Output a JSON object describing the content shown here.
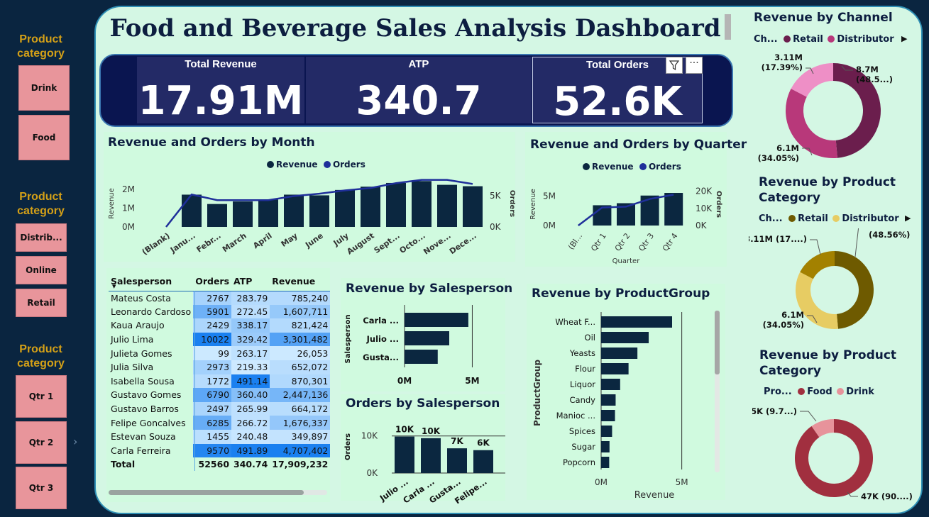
{
  "slicers": [
    {
      "title": "Product category",
      "items": [
        "Drink",
        "Food"
      ]
    },
    {
      "title": "Product category",
      "items": [
        "Distrib...",
        "Online",
        "Retail"
      ]
    },
    {
      "title": "Product category",
      "items": [
        "Qtr 1",
        "Qtr 2",
        "Qtr 3"
      ]
    }
  ],
  "title": "Food and Beverage Sales Analysis Dashboard",
  "kpis": [
    {
      "label": "Total Revenue",
      "value": "17.91M"
    },
    {
      "label": "ATP",
      "value": "340.7"
    },
    {
      "label": "Total Orders",
      "value": "52.6K"
    }
  ],
  "colors": {
    "dark": "#0b2740",
    "orders": "#1f2f9a",
    "retail": "#6b1e4d",
    "distributor": "#b8387a",
    "online": "#ee8fc6",
    "cat_dark": "#6e5a00",
    "cat_gold": "#a38100",
    "cat_light": "#e7cc63",
    "food": "#a12f3f",
    "drink": "#e7939b"
  },
  "month_chart": {
    "title": "Revenue and Orders by Month",
    "legend": [
      "Revenue",
      "Orders"
    ],
    "ylabel_left": "Revenue",
    "ylabel_right": "Orders",
    "left_ticks": [
      "2M",
      "1M",
      "0M"
    ],
    "right_ticks": [
      "5K",
      "0K"
    ]
  },
  "quarter_chart": {
    "title": "Revenue and Orders by Quarter",
    "legend": [
      "Revenue",
      "Orders"
    ],
    "ylabel_left": "Revenue",
    "ylabel_right": "Orders",
    "xlabel": "Quarter",
    "left_ticks": [
      "5M",
      "0M"
    ],
    "right_ticks": [
      "20K",
      "10K",
      "0K"
    ]
  },
  "table": {
    "headers": [
      "Salesperson",
      "Orders",
      "ATP",
      "Revenue"
    ],
    "rows": [
      [
        "Mateus Costa",
        "2767",
        "283.79",
        "785,240"
      ],
      [
        "Leonardo Cardoso",
        "5901",
        "272.45",
        "1,607,711"
      ],
      [
        "Kaua Araujo",
        "2429",
        "338.17",
        "821,424"
      ],
      [
        "Julio Lima",
        "10022",
        "329.42",
        "3,301,482"
      ],
      [
        "Julieta Gomes",
        "99",
        "263.17",
        "26,053"
      ],
      [
        "Julia Silva",
        "2973",
        "219.33",
        "652,072"
      ],
      [
        "Isabella Sousa",
        "1772",
        "491.14",
        "870,301"
      ],
      [
        "Gustavo Gomes",
        "6790",
        "360.40",
        "2,447,136"
      ],
      [
        "Gustavo Barros",
        "2497",
        "265.99",
        "664,172"
      ],
      [
        "Felipe Goncalves",
        "6285",
        "266.72",
        "1,676,337"
      ],
      [
        "Estevan Souza",
        "1455",
        "240.48",
        "349,897"
      ],
      [
        "Carla Ferreira",
        "9570",
        "491.89",
        "4,707,402"
      ]
    ],
    "total": [
      "Total",
      "52560",
      "340.74",
      "17,909,232"
    ]
  },
  "rev_sales": {
    "title": "Revenue by Salesperson",
    "ylabel": "Salesperson",
    "ticks": [
      "0M",
      "5M"
    ]
  },
  "ord_sales": {
    "title": "Orders by Salesperson",
    "ylabel": "Orders",
    "ticks": [
      "10K",
      "0K"
    ]
  },
  "prodgroup": {
    "title": "Revenue by ProductGroup",
    "ylabel": "ProductGroup",
    "xlabel": "Revenue",
    "ticks": [
      "0M",
      "5M"
    ]
  },
  "donut_channel": {
    "title": "Revenue by Channel",
    "legend_prefix": "Ch...",
    "legend": [
      "Retail",
      "Distributor"
    ]
  },
  "donut_cat1": {
    "title": "Revenue by Product Category",
    "legend_prefix": "Ch...",
    "legend": [
      "Retail",
      "Distributor"
    ]
  },
  "donut_cat2": {
    "title": "Revenue by Product Category",
    "legend_prefix": "Pro...",
    "legend": [
      "Food",
      "Drink"
    ]
  },
  "chart_data": [
    {
      "type": "bar",
      "name": "month",
      "title": "Revenue and Orders by Month",
      "categories": [
        "(Blank)",
        "Janu...",
        "Febr...",
        "March",
        "April",
        "May",
        "June",
        "July",
        "August",
        "Sept...",
        "Octo...",
        "Nove...",
        "Dece..."
      ],
      "series": [
        {
          "name": "Revenue",
          "values": [
            0,
            1.38,
            0.98,
            1.09,
            1.17,
            1.38,
            1.35,
            1.58,
            1.72,
            1.88,
            1.96,
            1.8,
            1.74
          ]
        },
        {
          "name": "Orders",
          "values": [
            0,
            4000,
            3300,
            3300,
            3300,
            3800,
            4100,
            4500,
            4800,
            5400,
            5800,
            5800,
            5300
          ]
        }
      ],
      "ylim": [
        0,
        2.5
      ],
      "y2lim": [
        0,
        7500
      ]
    },
    {
      "type": "bar",
      "name": "quarter",
      "title": "Revenue and Orders by Quarter",
      "categories": [
        "(Bl...",
        "Qtr 1",
        "Qtr 2",
        "Qtr 3",
        "Qtr 4"
      ],
      "series": [
        {
          "name": "Revenue",
          "values": [
            0,
            3.45,
            3.8,
            5.1,
            5.55
          ]
        },
        {
          "name": "Orders",
          "values": [
            0,
            10500,
            11000,
            15500,
            18000
          ]
        }
      ],
      "ylim": [
        0,
        7
      ],
      "y2lim": [
        0,
        24000
      ]
    },
    {
      "type": "bar",
      "name": "revenue_by_salesperson",
      "title": "Revenue by Salesperson",
      "categories": [
        "Carla ...",
        "Julio ...",
        "Gusta..."
      ],
      "values": [
        4.71,
        3.3,
        2.45
      ],
      "xlim": [
        0,
        5.5
      ]
    },
    {
      "type": "bar",
      "name": "orders_by_salesperson",
      "title": "Orders by Salesperson",
      "categories": [
        "Julio ...",
        "Carla ...",
        "Gusta...",
        "Felipe..."
      ],
      "values": [
        10022,
        9570,
        6790,
        6285
      ],
      "labels": [
        "10K",
        "10K",
        "7K",
        "6K"
      ],
      "ylim": [
        0,
        12000
      ]
    },
    {
      "type": "bar",
      "name": "revenue_by_productgroup",
      "title": "Revenue by ProductGroup",
      "categories": [
        "Wheat F...",
        "Oil",
        "Yeasts",
        "Flour",
        "Liquor",
        "Candy",
        "Manioc ...",
        "Spices",
        "Sugar",
        "Popcorn"
      ],
      "values": [
        4.4,
        2.95,
        2.25,
        1.7,
        1.18,
        0.9,
        0.86,
        0.68,
        0.52,
        0.5
      ],
      "xlim": [
        0,
        5.5
      ]
    },
    {
      "type": "pie",
      "name": "revenue_by_channel",
      "title": "Revenue by Channel",
      "slices": [
        {
          "label": "Retail",
          "value": 8.7,
          "text": "8.7M\n(48.5...)",
          "color": "#6b1e4d"
        },
        {
          "label": "Distributor",
          "value": 6.1,
          "text": "6.1M\n(34.05%)",
          "color": "#b8387a"
        },
        {
          "label": "Online",
          "value": 3.11,
          "text": "3.11M\n(17.39%)",
          "color": "#ee8fc6"
        }
      ]
    },
    {
      "type": "pie",
      "name": "revenue_by_product_category_channel",
      "title": "Revenue by Product Category",
      "slices": [
        {
          "label": "Retail",
          "value": 8.7,
          "text": "8.7M\n(48.56%)",
          "color": "#6e5a00"
        },
        {
          "label": "Distributor",
          "value": 6.1,
          "text": "6.1M\n(34.05%)",
          "color": "#e7cc63"
        },
        {
          "label": "Online",
          "value": 3.11,
          "text": "3.11M (17....)",
          "color": "#a38100"
        }
      ]
    },
    {
      "type": "pie",
      "name": "revenue_by_product_category_food",
      "title": "Revenue by Product Category",
      "slices": [
        {
          "label": "Food",
          "value": 90.3,
          "text": "47K (90....)",
          "color": "#a12f3f"
        },
        {
          "label": "Drink",
          "value": 9.7,
          "text": "5K (9.7...)",
          "color": "#e7939b"
        }
      ]
    }
  ]
}
